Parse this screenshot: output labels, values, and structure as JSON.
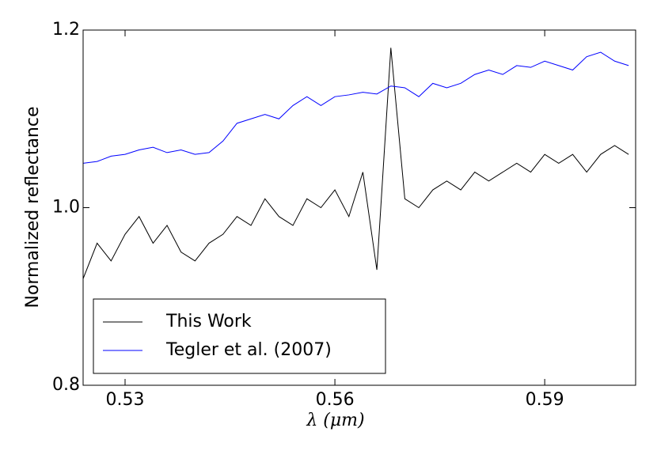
{
  "chart_data": {
    "type": "line",
    "xlabel": "λ (μm)",
    "ylabel": "Normalized reflectance",
    "x": [
      0.524,
      0.526,
      0.528,
      0.53,
      0.532,
      0.534,
      0.536,
      0.538,
      0.54,
      0.542,
      0.544,
      0.546,
      0.548,
      0.55,
      0.552,
      0.554,
      0.556,
      0.558,
      0.56,
      0.562,
      0.564,
      0.566,
      0.568,
      0.57,
      0.572,
      0.574,
      0.576,
      0.578,
      0.58,
      0.582,
      0.584,
      0.586,
      0.588,
      0.59,
      0.592,
      0.594,
      0.596,
      0.598,
      0.6,
      0.602
    ],
    "series": [
      {
        "name": "This Work",
        "color": "#000000",
        "values": [
          0.92,
          0.96,
          0.94,
          0.97,
          0.99,
          0.96,
          0.98,
          0.95,
          0.94,
          0.96,
          0.97,
          0.99,
          0.98,
          1.01,
          0.99,
          0.98,
          1.01,
          1.0,
          1.02,
          0.99,
          1.04,
          0.93,
          1.18,
          1.01,
          1.0,
          1.02,
          1.03,
          1.02,
          1.04,
          1.03,
          1.04,
          1.05,
          1.04,
          1.06,
          1.05,
          1.06,
          1.04,
          1.06,
          1.07,
          1.06
        ]
      },
      {
        "name": "Tegler et al. (2007)",
        "color": "#0000ff",
        "values": [
          1.05,
          1.052,
          1.058,
          1.06,
          1.065,
          1.068,
          1.062,
          1.065,
          1.06,
          1.062,
          1.075,
          1.095,
          1.1,
          1.105,
          1.1,
          1.115,
          1.125,
          1.115,
          1.125,
          1.127,
          1.13,
          1.128,
          1.137,
          1.135,
          1.125,
          1.14,
          1.135,
          1.14,
          1.15,
          1.155,
          1.15,
          1.16,
          1.158,
          1.165,
          1.16,
          1.155,
          1.17,
          1.175,
          1.165,
          1.16
        ]
      }
    ],
    "xlim": [
      0.524,
      0.603
    ],
    "xticks": [
      0.53,
      0.56,
      0.59
    ],
    "ylim": [
      0.8,
      1.2
    ],
    "yticks": [
      0.8,
      {
        "value": 1,
        "label": "1.0"
      },
      1.2
    ],
    "legend": "lower left"
  }
}
